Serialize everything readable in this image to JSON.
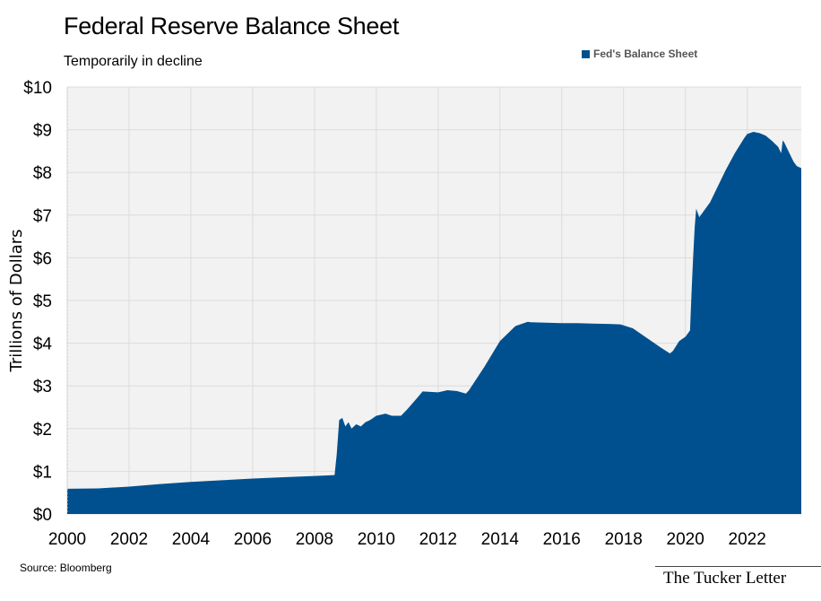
{
  "header": {
    "title": "Federal Reserve Balance Sheet",
    "subtitle": "Temporarily in decline"
  },
  "footer": {
    "source": "Source: Bloomberg",
    "brand": "The Tucker Letter"
  },
  "colors": {
    "series": "#00508f",
    "plot_bg": "#f2f2f2",
    "grid": "#dcdcdc"
  },
  "chart_data": {
    "type": "area",
    "title": "Federal Reserve Balance Sheet",
    "subtitle": "Temporarily in decline",
    "xlabel": "",
    "ylabel": "Trillions of Dollars",
    "xlim": [
      2000.0,
      2023.75
    ],
    "ylim": [
      0,
      10
    ],
    "x_ticks": [
      2000,
      2002,
      2004,
      2006,
      2008,
      2010,
      2012,
      2014,
      2016,
      2018,
      2020,
      2022
    ],
    "y_ticks": [
      0,
      1,
      2,
      3,
      4,
      5,
      6,
      7,
      8,
      9,
      10
    ],
    "y_tick_labels": [
      "$0",
      "$1",
      "$2",
      "$3",
      "$4",
      "$5",
      "$6",
      "$7",
      "$8",
      "$9",
      "$10"
    ],
    "grid": true,
    "legend": "top-right",
    "series": [
      {
        "name": "Fed's Balance Sheet",
        "x": [
          2000.0,
          2001.0,
          2002.0,
          2003.0,
          2004.0,
          2005.0,
          2006.0,
          2007.0,
          2008.0,
          2008.65,
          2008.72,
          2008.8,
          2008.9,
          2009.0,
          2009.1,
          2009.2,
          2009.35,
          2009.5,
          2009.65,
          2009.8,
          2010.0,
          2010.3,
          2010.5,
          2010.8,
          2011.0,
          2011.3,
          2011.5,
          2012.0,
          2012.3,
          2012.6,
          2012.9,
          2013.0,
          2013.5,
          2014.0,
          2014.5,
          2014.9,
          2015.0,
          2015.5,
          2016.0,
          2016.5,
          2017.0,
          2017.5,
          2017.9,
          2018.3,
          2018.6,
          2018.9,
          2019.2,
          2019.5,
          2019.6,
          2019.8,
          2020.0,
          2020.15,
          2020.2,
          2020.25,
          2020.3,
          2020.35,
          2020.45,
          2020.6,
          2020.8,
          2021.0,
          2021.3,
          2021.6,
          2021.9,
          2022.0,
          2022.2,
          2022.4,
          2022.6,
          2022.8,
          2023.0,
          2023.1,
          2023.15,
          2023.2,
          2023.3,
          2023.4,
          2023.5,
          2023.6,
          2023.75
        ],
        "values": [
          0.59,
          0.6,
          0.64,
          0.7,
          0.75,
          0.79,
          0.83,
          0.86,
          0.89,
          0.91,
          1.4,
          2.2,
          2.25,
          2.05,
          2.15,
          2.0,
          2.1,
          2.05,
          2.15,
          2.2,
          2.3,
          2.35,
          2.3,
          2.3,
          2.45,
          2.7,
          2.87,
          2.85,
          2.9,
          2.88,
          2.82,
          2.9,
          3.45,
          4.05,
          4.4,
          4.5,
          4.49,
          4.48,
          4.47,
          4.47,
          4.46,
          4.45,
          4.44,
          4.35,
          4.2,
          4.05,
          3.9,
          3.76,
          3.82,
          4.05,
          4.15,
          4.3,
          5.2,
          6.0,
          6.7,
          7.15,
          6.95,
          7.1,
          7.3,
          7.6,
          8.05,
          8.45,
          8.8,
          8.9,
          8.95,
          8.92,
          8.86,
          8.74,
          8.6,
          8.45,
          8.75,
          8.7,
          8.55,
          8.4,
          8.25,
          8.15,
          8.1
        ]
      }
    ]
  }
}
